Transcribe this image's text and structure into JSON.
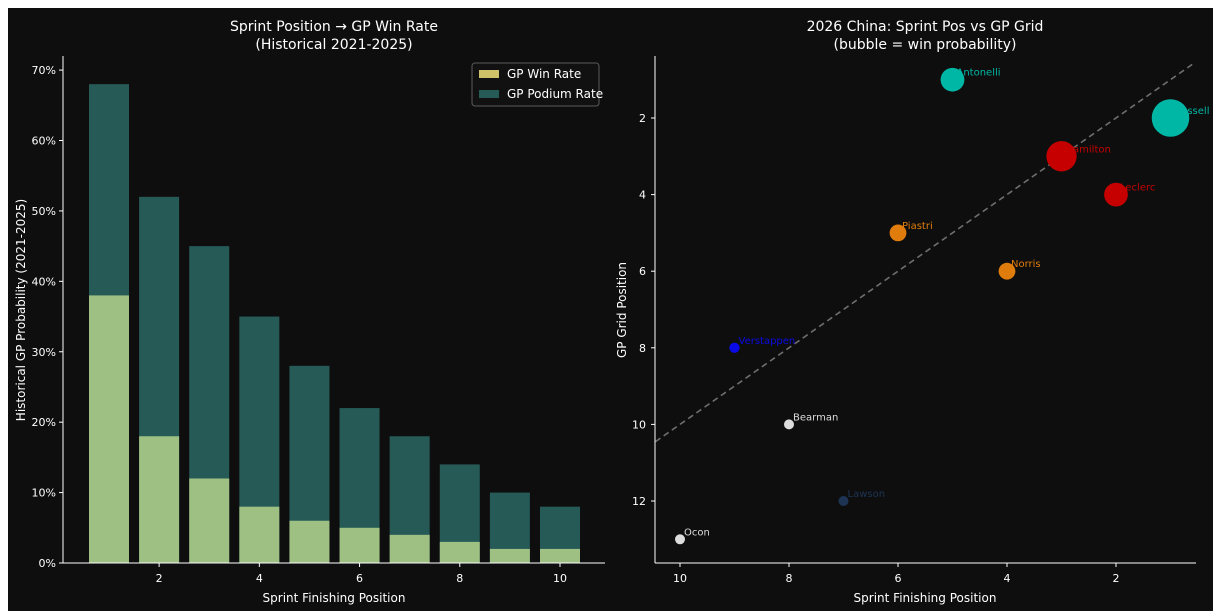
{
  "chart_data": [
    {
      "type": "bar",
      "title": "Sprint Position → GP Win Rate\n(Historical 2021-2025)",
      "xlabel": "Sprint Finishing Position",
      "ylabel": "Historical GP Probability (2021-2025)",
      "x": [
        1,
        2,
        3,
        4,
        5,
        6,
        7,
        8,
        9,
        10
      ],
      "xticks": [
        "2",
        "4",
        "6",
        "8",
        "10"
      ],
      "yticks": [
        "0%",
        "10%",
        "20%",
        "30%",
        "40%",
        "50%",
        "60%",
        "70%"
      ],
      "ylim": [
        0,
        0.72
      ],
      "legend_position": "upper right",
      "series": [
        {
          "name": "GP Win Rate",
          "color": "#cfc06a",
          "values": [
            0.38,
            0.18,
            0.12,
            0.08,
            0.06,
            0.05,
            0.04,
            0.03,
            0.02,
            0.02
          ]
        },
        {
          "name": "GP Podium Rate",
          "color": "#265a57",
          "values": [
            0.68,
            0.52,
            0.45,
            0.35,
            0.28,
            0.22,
            0.18,
            0.14,
            0.1,
            0.08
          ]
        }
      ],
      "overlap_color": "#9ec183"
    },
    {
      "type": "scatter",
      "title": "2026 China: Sprint Pos vs GP Grid\n(bubble = win probability)",
      "xlabel": "Sprint Finishing Position",
      "ylabel": "GP Grid Position",
      "xticks": [
        "10",
        "8",
        "6",
        "4",
        "2"
      ],
      "yticks": [
        "2",
        "4",
        "6",
        "8",
        "10",
        "12"
      ],
      "xlim": [
        10.45,
        0.55
      ],
      "ylim": [
        13.6,
        0.4
      ],
      "x_inverted": true,
      "y_inverted": true,
      "reference_line": "y = x (dashed)",
      "points": [
        {
          "driver": "Russell",
          "sprint": 1,
          "grid": 2,
          "win_prob": 0.2,
          "color": "#00b7a6"
        },
        {
          "driver": "Antonelli",
          "sprint": 5,
          "grid": 1,
          "win_prob": 0.08,
          "color": "#00b7a6"
        },
        {
          "driver": "Hamilton",
          "sprint": 3,
          "grid": 3,
          "win_prob": 0.13,
          "color": "#c60000"
        },
        {
          "driver": "Leclerc",
          "sprint": 2,
          "grid": 4,
          "win_prob": 0.08,
          "color": "#c60000"
        },
        {
          "driver": "Piastri",
          "sprint": 6,
          "grid": 5,
          "win_prob": 0.04,
          "color": "#e07c0c"
        },
        {
          "driver": "Norris",
          "sprint": 4,
          "grid": 6,
          "win_prob": 0.04,
          "color": "#e07c0c"
        },
        {
          "driver": "Verstappen",
          "sprint": 9,
          "grid": 8,
          "win_prob": 0.015,
          "color": "#0a0ae6"
        },
        {
          "driver": "Bearman",
          "sprint": 8,
          "grid": 10,
          "win_prob": 0.012,
          "color": "#dcdcdc"
        },
        {
          "driver": "Lawson",
          "sprint": 7,
          "grid": 12,
          "win_prob": 0.012,
          "color": "#1e3455"
        },
        {
          "driver": "Ocon",
          "sprint": 10,
          "grid": 13,
          "win_prob": 0.01,
          "color": "#dcdcdc"
        }
      ]
    }
  ]
}
